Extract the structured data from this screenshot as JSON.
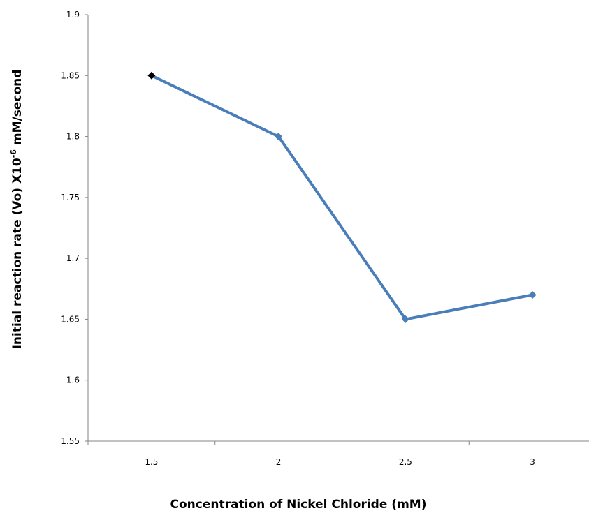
{
  "chart_data": {
    "type": "line",
    "title": "",
    "xlabel": "Concentration of  Nickel Chloride  (mM)",
    "ylabel": {
      "prefix": "Initial  reaction  rate  (Vo)  X10",
      "exponent": "-6",
      "suffix": " mM/second"
    },
    "categories": [
      "1.5",
      "2",
      "2.5",
      "3"
    ],
    "series": [
      {
        "values": [
          1.85,
          1.8,
          1.65,
          1.67
        ],
        "color": "#4a7ebb",
        "marker": "diamond"
      }
    ],
    "first_marker_color": "#000000",
    "ylim": [
      1.55,
      1.9
    ],
    "yticks": [
      "1.55",
      "1.6",
      "1.65",
      "1.7",
      "1.75",
      "1.8",
      "1.85",
      "1.9"
    ],
    "grid": false,
    "legend": "none"
  }
}
